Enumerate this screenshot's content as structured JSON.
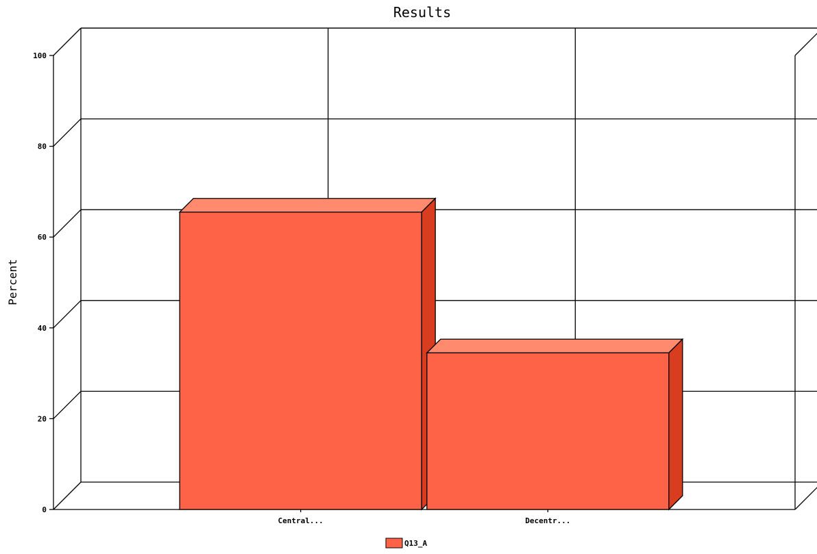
{
  "chart_data": {
    "type": "bar",
    "title": "Results",
    "xlabel": "",
    "ylabel": "Percent",
    "categories": [
      "Central...",
      "Decentr..."
    ],
    "series": [
      {
        "name": "Q13_A",
        "values": [
          65.5,
          34.5
        ],
        "color": "#ff6347"
      }
    ],
    "ylim": [
      0,
      100
    ],
    "yticks": [
      0,
      20,
      40,
      60,
      80,
      100
    ],
    "grid": true,
    "legend": "bottom-center",
    "style": "3d"
  }
}
